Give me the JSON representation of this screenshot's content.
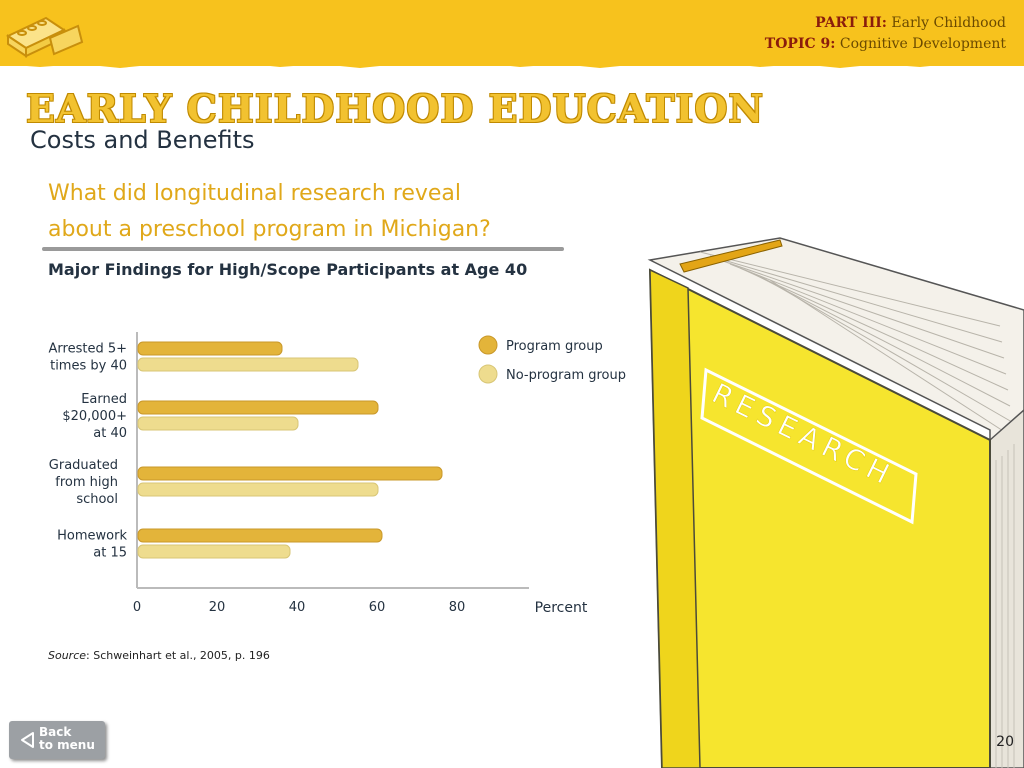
{
  "header": {
    "part_label": "PART III:",
    "part_text": "Early Childhood",
    "topic_label": "TOPIC 9:",
    "topic_text": "Cognitive Development"
  },
  "title": "EARLY CHILDHOOD EDUCATION",
  "subtitle": "Costs and Benefits",
  "question_line1": "What did longitudinal research reveal",
  "question_line2": "about a preschool program in Michigan?",
  "book_label": "RESEARCH",
  "chart_data": {
    "type": "bar",
    "orientation": "horizontal",
    "title": "Major Findings for High/Scope Participants at Age 40",
    "categories": [
      [
        "Arrested 5+",
        "times by 40"
      ],
      [
        "Earned",
        "$20,000+",
        "at 40"
      ],
      [
        "Graduated",
        "from high",
        "school"
      ],
      [
        "Homework",
        "at 15"
      ]
    ],
    "series": [
      {
        "name": "Program group",
        "color": "#e3b43a",
        "values": [
          36,
          60,
          76,
          61
        ]
      },
      {
        "name": "No-program group",
        "color": "#eedc8e",
        "values": [
          55,
          40,
          60,
          38
        ]
      }
    ],
    "xlabel": "Percent",
    "xlim": [
      0,
      100
    ],
    "xticks": [
      0,
      20,
      40,
      60,
      80
    ],
    "legend_position": "right",
    "grid": false
  },
  "source_label": "Source",
  "source_text": ": Schweinhart et al., 2005, p. 196",
  "back_button": {
    "line1": "Back",
    "line2": "to menu"
  },
  "page_number": "20"
}
